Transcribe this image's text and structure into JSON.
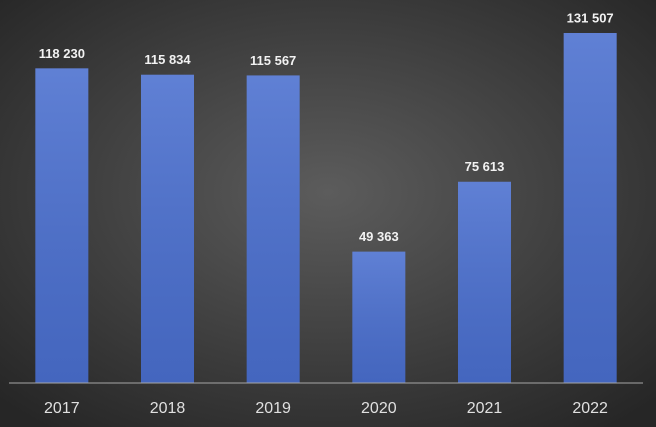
{
  "chart_data": {
    "type": "bar",
    "categories": [
      "2017",
      "2018",
      "2019",
      "2020",
      "2021",
      "2022"
    ],
    "values": [
      118230,
      115834,
      115567,
      49363,
      75613,
      131507
    ],
    "value_labels": [
      "118 230",
      "115 834",
      "115 567",
      "49 363",
      "75 613",
      "131 507"
    ],
    "color": "#4a6fcf"
  }
}
